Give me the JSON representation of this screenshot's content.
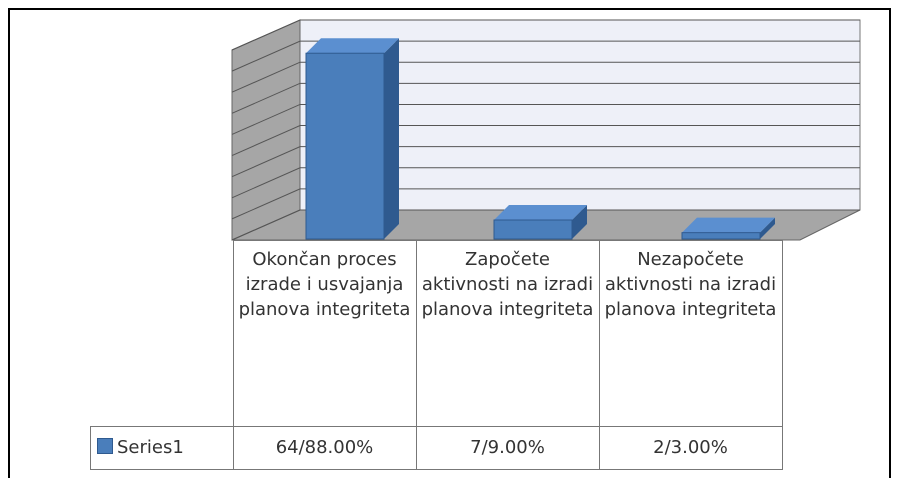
{
  "chart_data": {
    "type": "bar3d",
    "categories": [
      "Okončan proces izrade i usvajanja planova integriteta",
      "Započete aktivnosti na izradi planova integriteta",
      "Nezapočete aktivnosti na izradi planova integriteta"
    ],
    "series": [
      {
        "name": "Series1",
        "color": "#4a7ebb",
        "values": [
          88,
          9,
          3
        ],
        "value_labels": [
          "64/88.00%",
          "7/9.00%",
          "2/3.00%"
        ]
      }
    ],
    "ylim": [
      0,
      90
    ],
    "yticks": [
      0,
      10,
      20,
      30,
      40,
      50,
      60,
      70,
      80,
      90
    ],
    "grid": true
  }
}
